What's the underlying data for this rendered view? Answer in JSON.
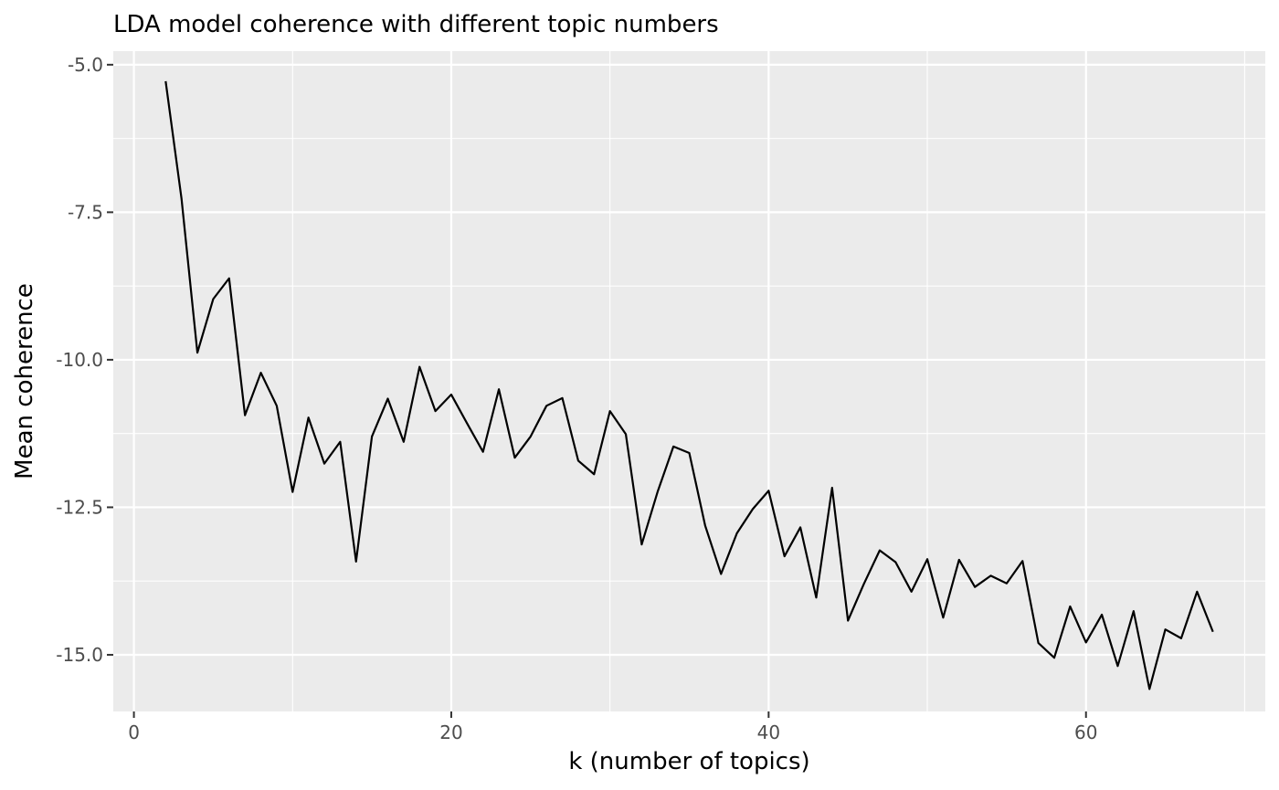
{
  "chart_data": {
    "type": "line",
    "title": "LDA model coherence with different topic numbers",
    "xlabel": "k (number of topics)",
    "ylabel": "Mean coherence",
    "xlim": [
      -1.3,
      71.3
    ],
    "ylim": [
      -15.96,
      -4.77
    ],
    "x_ticks": [
      0,
      20,
      40,
      60
    ],
    "x_tick_labels": [
      "0",
      "20",
      "40",
      "60"
    ],
    "x_minor_ticks": [
      10,
      30,
      50,
      70
    ],
    "y_ticks": [
      -5.0,
      -7.5,
      -10.0,
      -12.5,
      -15.0
    ],
    "y_tick_labels": [
      "-5.0",
      "-7.5",
      "-10.0",
      "-12.5",
      "-15.0"
    ],
    "y_minor_ticks": [
      -6.25,
      -8.75,
      -11.25,
      -13.75
    ],
    "grid": true,
    "colors": {
      "panel_background": "#ebebeb",
      "grid_line": "#ffffff",
      "series_line": "#000000",
      "tick_label": "#4d4d4d",
      "tick_mark": "#333333"
    },
    "series": [
      {
        "x": [
          2,
          3,
          4,
          5,
          6,
          7,
          8,
          9,
          10,
          11,
          12,
          13,
          14,
          15,
          16,
          17,
          18,
          19,
          20,
          21,
          22,
          23,
          24,
          25,
          26,
          27,
          28,
          29,
          30,
          31,
          32,
          33,
          34,
          35,
          36,
          37,
          38,
          39,
          40,
          41,
          42,
          43,
          44,
          45,
          46,
          47,
          48,
          49,
          50,
          51,
          52,
          53,
          54,
          55,
          56,
          57,
          58,
          59,
          60,
          61,
          62,
          63,
          64,
          65,
          66,
          67,
          68
        ],
        "values": [
          -5.28,
          -7.27,
          -9.88,
          -8.97,
          -8.62,
          -10.94,
          -10.22,
          -10.78,
          -12.24,
          -10.98,
          -11.76,
          -11.39,
          -13.42,
          -11.3,
          -10.66,
          -11.39,
          -10.12,
          -10.87,
          -10.59,
          -11.08,
          -11.56,
          -10.5,
          -11.66,
          -11.3,
          -10.78,
          -10.65,
          -11.71,
          -11.94,
          -10.87,
          -11.26,
          -13.13,
          -12.24,
          -11.47,
          -11.58,
          -12.81,
          -13.63,
          -12.94,
          -12.53,
          -12.22,
          -13.33,
          -12.84,
          -14.03,
          -12.17,
          -14.42,
          -13.8,
          -13.23,
          -13.43,
          -13.93,
          -13.38,
          -14.37,
          -13.39,
          -13.85,
          -13.66,
          -13.79,
          -13.41,
          -14.8,
          -15.05,
          -14.18,
          -14.79,
          -14.32,
          -15.19,
          -14.26,
          -15.58,
          -14.57,
          -14.72,
          -13.93,
          -14.61
        ]
      }
    ]
  }
}
